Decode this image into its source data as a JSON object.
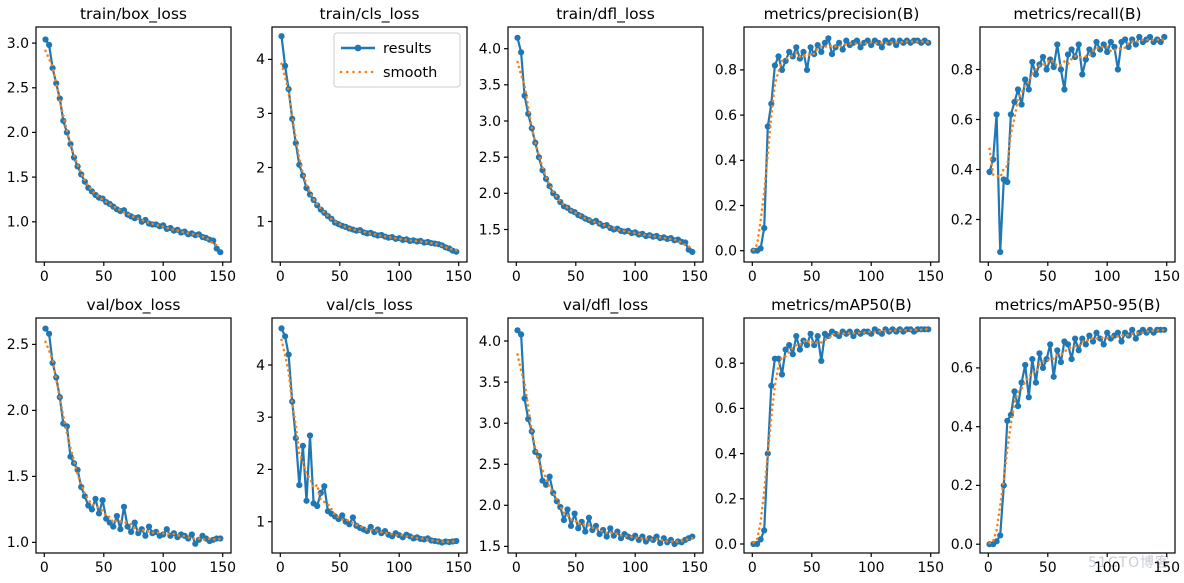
{
  "page": {
    "background": "#ffffff",
    "watermark": "51CTO博客"
  },
  "colors": {
    "results_line": "#1f77b4",
    "smooth_line": "#ff7f0e",
    "axis": "#000000",
    "legend_border": "#cccccc",
    "legend_bg": "#ffffff"
  },
  "legend": {
    "entries": [
      {
        "label": "results",
        "style": "solid-line-with-dot-marker"
      },
      {
        "label": "smooth",
        "style": "dotted-line"
      }
    ],
    "shown_on_subplot": "train/cls_loss",
    "position": "upper right"
  },
  "chart_data": {
    "type": "line",
    "layout": "2 rows x 5 columns of subplots",
    "series_names": [
      "results",
      "smooth"
    ],
    "smooth_definition": "moving average of results",
    "xlabel": "",
    "xticks": [
      "0",
      "50",
      "100",
      "150"
    ],
    "xlim": [
      -7,
      157
    ],
    "x": [
      1,
      4,
      7,
      10,
      13,
      16,
      19,
      22,
      25,
      28,
      31,
      34,
      37,
      40,
      43,
      46,
      49,
      52,
      55,
      58,
      61,
      64,
      67,
      70,
      73,
      76,
      79,
      82,
      85,
      88,
      91,
      94,
      97,
      100,
      103,
      106,
      109,
      112,
      115,
      118,
      121,
      124,
      127,
      130,
      133,
      136,
      139,
      142,
      145,
      148
    ],
    "subplots": [
      {
        "title": "train/box_loss",
        "yticks": [
          "1.0",
          "1.5",
          "2.0",
          "2.5",
          "3.0"
        ],
        "ylim": [
          0.55,
          3.18
        ],
        "legend": false,
        "values": [
          3.04,
          2.98,
          2.72,
          2.55,
          2.38,
          2.13,
          2.0,
          1.87,
          1.72,
          1.62,
          1.53,
          1.45,
          1.38,
          1.34,
          1.3,
          1.27,
          1.26,
          1.22,
          1.2,
          1.17,
          1.14,
          1.12,
          1.13,
          1.08,
          1.06,
          1.04,
          1.05,
          1.0,
          1.02,
          0.98,
          0.97,
          0.97,
          0.95,
          0.96,
          0.92,
          0.93,
          0.9,
          0.91,
          0.88,
          0.89,
          0.86,
          0.87,
          0.85,
          0.86,
          0.83,
          0.82,
          0.8,
          0.79,
          0.7,
          0.66
        ]
      },
      {
        "title": "train/cls_loss",
        "yticks": [
          "1",
          "2",
          "3",
          "4"
        ],
        "ylim": [
          0.25,
          4.6
        ],
        "legend": true,
        "values": [
          4.43,
          3.88,
          3.45,
          2.9,
          2.45,
          2.05,
          1.85,
          1.62,
          1.5,
          1.4,
          1.3,
          1.22,
          1.16,
          1.1,
          1.05,
          0.98,
          0.95,
          0.92,
          0.9,
          0.87,
          0.85,
          0.83,
          0.84,
          0.8,
          0.78,
          0.79,
          0.76,
          0.74,
          0.75,
          0.72,
          0.7,
          0.71,
          0.68,
          0.69,
          0.66,
          0.67,
          0.64,
          0.65,
          0.63,
          0.64,
          0.61,
          0.62,
          0.6,
          0.59,
          0.58,
          0.56,
          0.52,
          0.5,
          0.46,
          0.44
        ]
      },
      {
        "title": "train/dfl_loss",
        "yticks": [
          "1.5",
          "2.0",
          "2.5",
          "3.0",
          "3.5",
          "4.0"
        ],
        "ylim": [
          1.05,
          4.3
        ],
        "legend": false,
        "values": [
          4.15,
          3.95,
          3.35,
          3.1,
          2.9,
          2.7,
          2.5,
          2.32,
          2.2,
          2.1,
          2.0,
          1.95,
          1.88,
          1.82,
          1.8,
          1.76,
          1.74,
          1.7,
          1.68,
          1.65,
          1.63,
          1.6,
          1.62,
          1.58,
          1.55,
          1.56,
          1.52,
          1.5,
          1.51,
          1.48,
          1.47,
          1.48,
          1.45,
          1.46,
          1.43,
          1.44,
          1.41,
          1.42,
          1.4,
          1.41,
          1.38,
          1.39,
          1.37,
          1.38,
          1.35,
          1.36,
          1.33,
          1.32,
          1.22,
          1.19
        ]
      },
      {
        "title": "metrics/precision(B)",
        "yticks": [
          "0.0",
          "0.2",
          "0.4",
          "0.6",
          "0.8"
        ],
        "ylim": [
          -0.05,
          0.99
        ],
        "legend": false,
        "values": [
          0.0,
          0.0,
          0.01,
          0.1,
          0.55,
          0.65,
          0.82,
          0.86,
          0.8,
          0.84,
          0.88,
          0.86,
          0.9,
          0.85,
          0.88,
          0.8,
          0.9,
          0.87,
          0.91,
          0.88,
          0.92,
          0.94,
          0.87,
          0.9,
          0.92,
          0.89,
          0.93,
          0.91,
          0.92,
          0.93,
          0.9,
          0.92,
          0.93,
          0.91,
          0.93,
          0.92,
          0.9,
          0.93,
          0.92,
          0.93,
          0.91,
          0.93,
          0.92,
          0.93,
          0.92,
          0.93,
          0.93,
          0.92,
          0.93,
          0.92
        ]
      },
      {
        "title": "metrics/recall(B)",
        "yticks": [
          "0.2",
          "0.4",
          "0.6",
          "0.8"
        ],
        "ylim": [
          0.03,
          0.97
        ],
        "legend": false,
        "values": [
          0.39,
          0.44,
          0.62,
          0.07,
          0.36,
          0.35,
          0.62,
          0.67,
          0.72,
          0.66,
          0.76,
          0.72,
          0.83,
          0.78,
          0.82,
          0.85,
          0.8,
          0.84,
          0.81,
          0.9,
          0.8,
          0.72,
          0.86,
          0.88,
          0.85,
          0.9,
          0.78,
          0.84,
          0.88,
          0.86,
          0.91,
          0.88,
          0.9,
          0.87,
          0.91,
          0.89,
          0.8,
          0.91,
          0.92,
          0.89,
          0.92,
          0.9,
          0.93,
          0.91,
          0.92,
          0.93,
          0.91,
          0.92,
          0.91,
          0.93
        ]
      },
      {
        "title": "val/box_loss",
        "yticks": [
          "1.0",
          "1.5",
          "2.0",
          "2.5"
        ],
        "ylim": [
          0.92,
          2.7
        ],
        "legend": false,
        "values": [
          2.62,
          2.58,
          2.36,
          2.25,
          2.1,
          1.9,
          1.88,
          1.65,
          1.6,
          1.55,
          1.42,
          1.35,
          1.28,
          1.25,
          1.33,
          1.22,
          1.32,
          1.18,
          1.15,
          1.12,
          1.2,
          1.1,
          1.27,
          1.12,
          1.08,
          1.15,
          1.07,
          1.1,
          1.05,
          1.12,
          1.07,
          1.08,
          1.05,
          1.06,
          1.1,
          1.05,
          1.07,
          1.04,
          1.06,
          1.05,
          1.03,
          1.06,
          0.99,
          1.02,
          1.05,
          1.03,
          1.01,
          1.02,
          1.03,
          1.03
        ]
      },
      {
        "title": "val/cls_loss",
        "yticks": [
          "1",
          "2",
          "3",
          "4"
        ],
        "ylim": [
          0.4,
          4.9
        ],
        "legend": false,
        "values": [
          4.7,
          4.55,
          4.2,
          3.3,
          2.6,
          1.7,
          2.45,
          1.4,
          2.65,
          1.35,
          1.3,
          1.55,
          1.68,
          1.2,
          1.15,
          1.1,
          1.05,
          1.12,
          1.0,
          0.95,
          1.08,
          0.92,
          0.88,
          0.85,
          0.82,
          0.9,
          0.8,
          0.85,
          0.78,
          0.82,
          0.75,
          0.72,
          0.78,
          0.74,
          0.7,
          0.75,
          0.72,
          0.68,
          0.7,
          0.67,
          0.66,
          0.68,
          0.64,
          0.63,
          0.62,
          0.6,
          0.62,
          0.61,
          0.62,
          0.63
        ]
      },
      {
        "title": "val/dfl_loss",
        "yticks": [
          "1.5",
          "2.0",
          "2.5",
          "3.0",
          "3.5",
          "4.0"
        ],
        "ylim": [
          1.42,
          4.28
        ],
        "legend": false,
        "values": [
          4.13,
          4.08,
          3.3,
          3.05,
          2.9,
          2.65,
          2.6,
          2.3,
          2.25,
          2.35,
          2.15,
          2.05,
          1.98,
          1.82,
          1.95,
          1.75,
          1.9,
          1.72,
          1.8,
          1.68,
          1.85,
          1.7,
          1.75,
          1.65,
          1.7,
          1.62,
          1.72,
          1.63,
          1.68,
          1.6,
          1.65,
          1.62,
          1.6,
          1.63,
          1.58,
          1.62,
          1.56,
          1.6,
          1.58,
          1.62,
          1.54,
          1.6,
          1.55,
          1.58,
          1.53,
          1.56,
          1.55,
          1.58,
          1.6,
          1.62
        ]
      },
      {
        "title": "metrics/mAP50(B)",
        "yticks": [
          "0.0",
          "0.2",
          "0.4",
          "0.6",
          "0.8"
        ],
        "ylim": [
          -0.04,
          1.0
        ],
        "legend": false,
        "values": [
          0.0,
          0.0,
          0.02,
          0.06,
          0.4,
          0.7,
          0.82,
          0.82,
          0.75,
          0.86,
          0.88,
          0.84,
          0.92,
          0.86,
          0.9,
          0.88,
          0.93,
          0.88,
          0.92,
          0.81,
          0.93,
          0.92,
          0.94,
          0.93,
          0.92,
          0.94,
          0.93,
          0.94,
          0.92,
          0.94,
          0.93,
          0.94,
          0.94,
          0.93,
          0.95,
          0.94,
          0.93,
          0.95,
          0.94,
          0.95,
          0.94,
          0.95,
          0.94,
          0.95,
          0.95,
          0.94,
          0.95,
          0.95,
          0.95,
          0.95
        ]
      },
      {
        "title": "metrics/mAP50-95(B)",
        "yticks": [
          "0.0",
          "0.2",
          "0.4",
          "0.6"
        ],
        "ylim": [
          -0.03,
          0.77
        ],
        "legend": false,
        "values": [
          0.0,
          0.0,
          0.01,
          0.03,
          0.2,
          0.42,
          0.44,
          0.52,
          0.47,
          0.55,
          0.61,
          0.5,
          0.63,
          0.55,
          0.65,
          0.6,
          0.63,
          0.68,
          0.57,
          0.66,
          0.62,
          0.69,
          0.68,
          0.63,
          0.7,
          0.66,
          0.7,
          0.68,
          0.71,
          0.69,
          0.72,
          0.7,
          0.68,
          0.72,
          0.7,
          0.71,
          0.72,
          0.69,
          0.72,
          0.71,
          0.73,
          0.7,
          0.72,
          0.73,
          0.72,
          0.73,
          0.72,
          0.73,
          0.73,
          0.73
        ]
      }
    ]
  }
}
